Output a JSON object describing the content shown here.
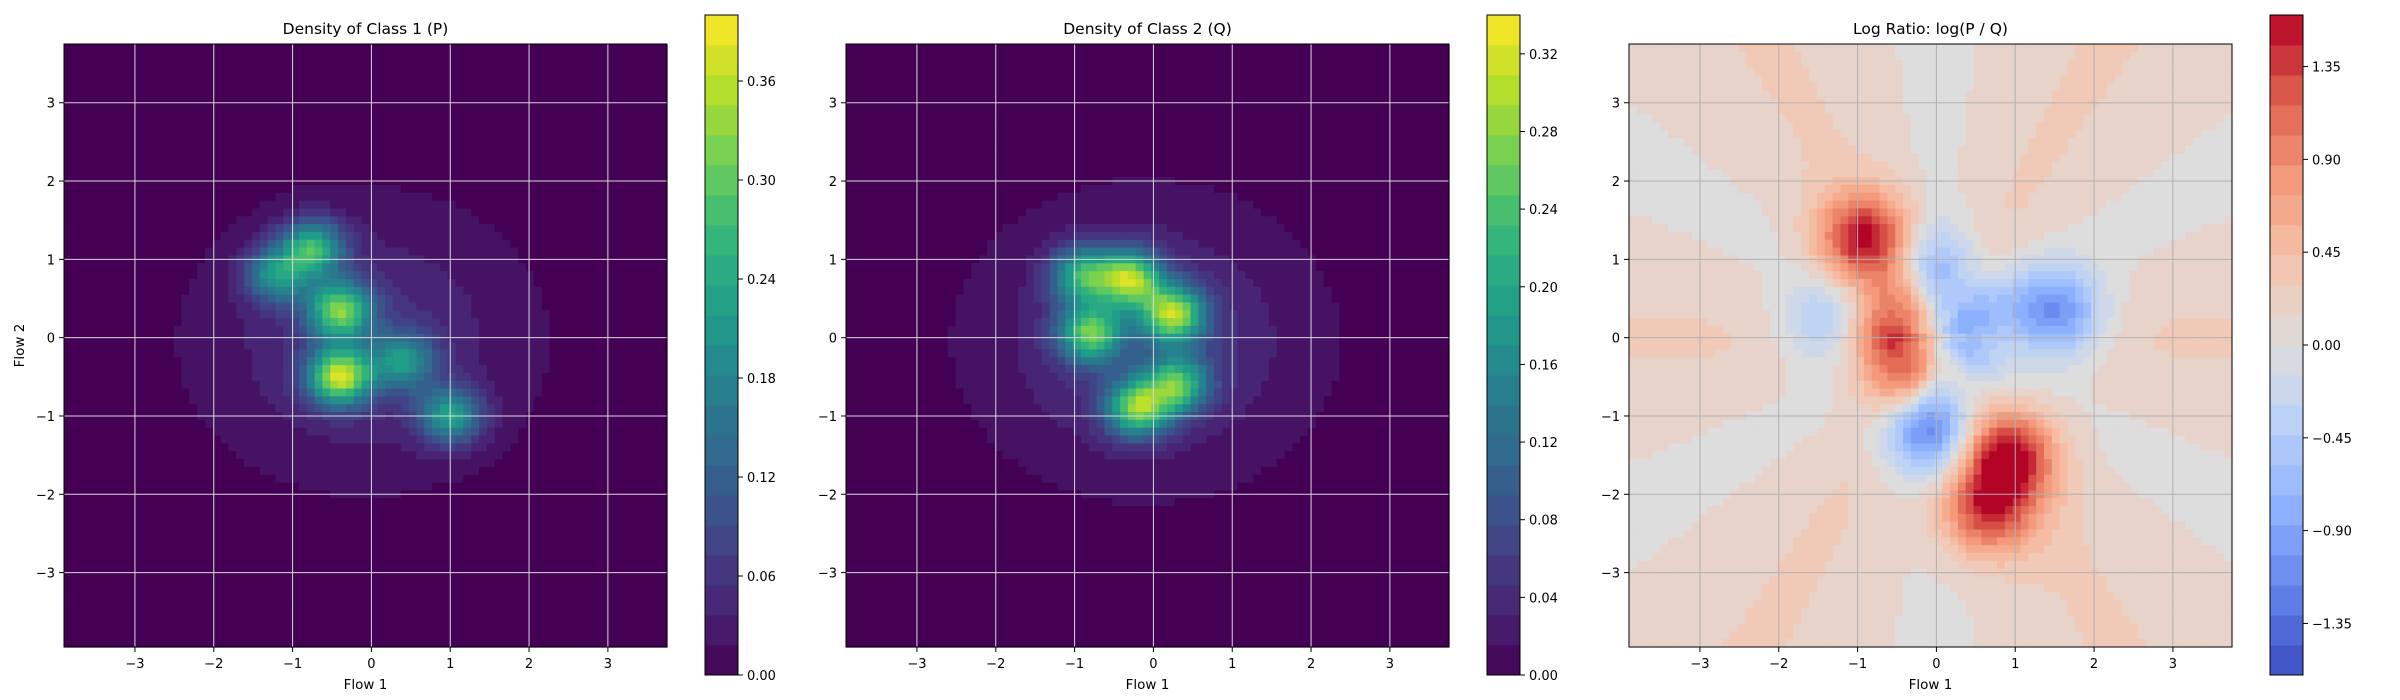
{
  "chart_data": [
    {
      "type": "heatmap",
      "title": "Density of Class 1 (P)",
      "xlabel": "Flow 1",
      "ylabel": "Flow 2",
      "xlim": [
        -3.9,
        3.75
      ],
      "ylim": [
        -3.95,
        3.75
      ],
      "x_ticks": [
        -3,
        -2,
        -1,
        0,
        1,
        2,
        3
      ],
      "y_ticks": [
        -3,
        -2,
        -1,
        0,
        1,
        2,
        3
      ],
      "grid": true,
      "colormap": "viridis",
      "colorbar_range": [
        0.0,
        0.4
      ],
      "colorbar_ticks": [
        0.0,
        0.06,
        0.12,
        0.18,
        0.24,
        0.3,
        0.36
      ],
      "colorbar_tick_labels": [
        "0.00",
        "0.06",
        "0.12",
        "0.18",
        "0.24",
        "0.30",
        "0.36"
      ],
      "density_peaks": [
        {
          "x": -0.4,
          "y": -0.5,
          "value": 0.39
        },
        {
          "x": -0.4,
          "y": 0.35,
          "value": 0.33
        },
        {
          "x": -0.75,
          "y": 1.15,
          "value": 0.28
        },
        {
          "x": 1.0,
          "y": -1.0,
          "value": 0.24
        },
        {
          "x": -1.2,
          "y": 0.8,
          "value": 0.22
        },
        {
          "x": 0.4,
          "y": -0.3,
          "value": 0.2
        }
      ]
    },
    {
      "type": "heatmap",
      "title": "Density of Class 2 (Q)",
      "xlabel": "Flow 1",
      "ylabel": "",
      "xlim": [
        -3.9,
        3.75
      ],
      "ylim": [
        -3.95,
        3.75
      ],
      "x_ticks": [
        -3,
        -2,
        -1,
        0,
        1,
        2,
        3
      ],
      "y_ticks": [
        -3,
        -2,
        -1,
        0,
        1,
        2,
        3
      ],
      "grid": true,
      "colormap": "viridis",
      "colorbar_range": [
        0.0,
        0.34
      ],
      "colorbar_ticks": [
        0.0,
        0.04,
        0.08,
        0.12,
        0.16,
        0.2,
        0.24,
        0.28,
        0.32
      ],
      "colorbar_tick_labels": [
        "0.00",
        "0.04",
        "0.08",
        "0.12",
        "0.16",
        "0.20",
        "0.24",
        "0.28",
        "0.32"
      ],
      "density_peaks": [
        {
          "x": -0.3,
          "y": 0.75,
          "value": 0.3
        },
        {
          "x": 0.25,
          "y": 0.3,
          "value": 0.3
        },
        {
          "x": -0.8,
          "y": 0.05,
          "value": 0.26
        },
        {
          "x": -0.2,
          "y": -0.9,
          "value": 0.28
        },
        {
          "x": 0.3,
          "y": -0.6,
          "value": 0.24
        },
        {
          "x": -0.9,
          "y": 0.8,
          "value": 0.22
        }
      ]
    },
    {
      "type": "heatmap",
      "title": "Log Ratio: log(P / Q)",
      "xlabel": "Flow 1",
      "ylabel": "",
      "xlim": [
        -3.9,
        3.75
      ],
      "ylim": [
        -3.95,
        3.75
      ],
      "x_ticks": [
        -3,
        -2,
        -1,
        0,
        1,
        2,
        3
      ],
      "y_ticks": [
        -3,
        -2,
        -1,
        0,
        1,
        2,
        3
      ],
      "grid": true,
      "colormap": "coolwarm",
      "colorbar_range": [
        -1.6,
        1.6
      ],
      "colorbar_ticks": [
        -1.35,
        -0.9,
        -0.45,
        0.0,
        0.45,
        0.9,
        1.35
      ],
      "colorbar_tick_labels": [
        "−1.35",
        "−0.90",
        "−0.45",
        "0.00",
        "0.45",
        "0.90",
        "1.35"
      ],
      "ratio_regions": [
        {
          "x": -0.9,
          "y": 1.25,
          "value": 1.45
        },
        {
          "x": -0.5,
          "y": 0.3,
          "value": 1.1
        },
        {
          "x": 0.9,
          "y": -1.5,
          "value": 1.4
        },
        {
          "x": 0.65,
          "y": -2.2,
          "value": 1.2
        },
        {
          "x": -0.45,
          "y": -0.4,
          "value": 1.0
        },
        {
          "x": -0.1,
          "y": -1.15,
          "value": -1.3
        },
        {
          "x": 1.5,
          "y": 0.3,
          "value": -1.25
        },
        {
          "x": 0.3,
          "y": 0.1,
          "value": -1.0
        },
        {
          "x": -1.4,
          "y": 0.2,
          "value": -0.7
        },
        {
          "x": -0.1,
          "y": 0.9,
          "value": -0.8
        }
      ],
      "background_value": 0.25
    }
  ]
}
